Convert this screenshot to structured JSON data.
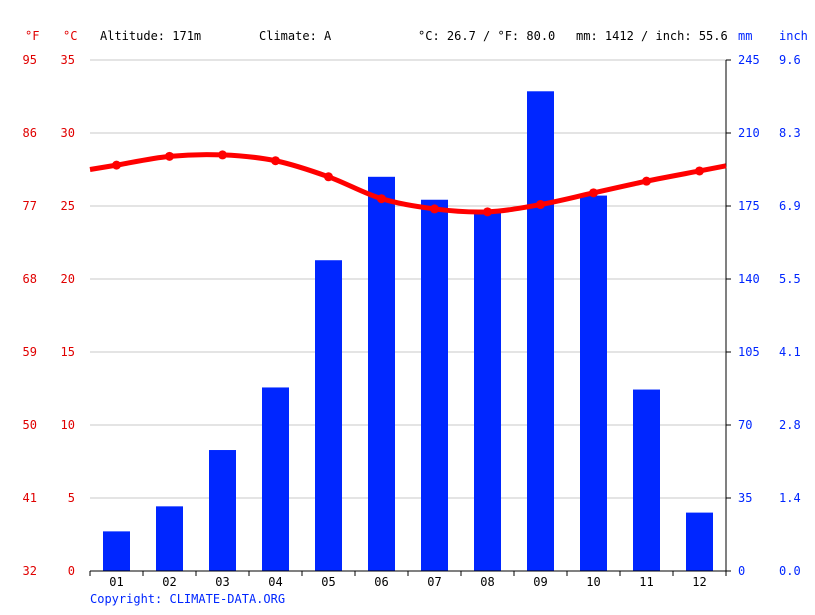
{
  "header": {
    "unit_f": "°F",
    "unit_c": "°C",
    "altitude": "Altitude: 171m",
    "climate": "Climate: A",
    "avg_temp": "°C: 26.7 / °F: 80.0",
    "precip_total": "mm: 1412 / inch: 55.6",
    "unit_mm": "mm",
    "unit_inch": "inch"
  },
  "footer": {
    "copyright": "Copyright: CLIMATE-DATA.ORG"
  },
  "colors": {
    "temperature": "#ff0000",
    "precipitation": "#0026ff",
    "grid": "#c8c8c8",
    "text": "#000000"
  },
  "chart_data": {
    "type": "bar",
    "categories": [
      "01",
      "02",
      "03",
      "04",
      "05",
      "06",
      "07",
      "08",
      "09",
      "10",
      "11",
      "12"
    ],
    "series": [
      {
        "type": "bar",
        "axis": "right",
        "unit": "mm",
        "values": [
          19,
          31,
          58,
          88,
          149,
          189,
          178,
          172,
          230,
          180,
          87,
          28
        ]
      },
      {
        "type": "line",
        "axis": "left",
        "unit": "°C",
        "values": [
          27.8,
          28.4,
          28.5,
          28.1,
          27.0,
          25.5,
          24.8,
          24.6,
          25.1,
          25.9,
          26.7,
          27.4
        ]
      }
    ],
    "y_left_celsius_ticks": [
      "0",
      "5",
      "10",
      "15",
      "20",
      "25",
      "30",
      "35"
    ],
    "y_left_fahrenheit_ticks": [
      "32",
      "41",
      "50",
      "59",
      "68",
      "77",
      "86",
      "95"
    ],
    "y_right_mm_ticks": [
      "0",
      "35",
      "70",
      "105",
      "140",
      "175",
      "210",
      "245"
    ],
    "y_right_inch_ticks": [
      "0.0",
      "1.4",
      "2.8",
      "4.1",
      "5.5",
      "6.9",
      "8.3",
      "9.6"
    ],
    "ylim_celsius": [
      0,
      35
    ],
    "ylim_mm": [
      0,
      245
    ],
    "grid": true
  }
}
